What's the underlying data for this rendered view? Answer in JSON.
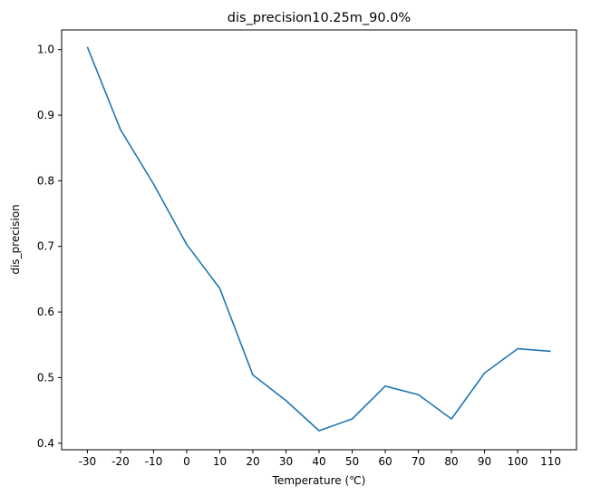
{
  "chart_data": {
    "type": "line",
    "title": "dis_precision10.25m_90.0%",
    "xlabel": "Temperature (℃)",
    "ylabel": "dis_precision",
    "categories": [
      "-30",
      "-20",
      "-10",
      "0",
      "10",
      "20",
      "30",
      "40",
      "50",
      "60",
      "70",
      "80",
      "90",
      "100",
      "110"
    ],
    "yticks": [
      "0.4",
      "0.5",
      "0.6",
      "0.7",
      "0.8",
      "0.9",
      "1.0"
    ],
    "ylim": [
      0.39,
      1.03
    ],
    "grid": false,
    "series": [
      {
        "color": "#1f77b4",
        "values": [
          1.004,
          0.878,
          0.795,
          0.703,
          0.636,
          0.504,
          0.465,
          0.419,
          0.437,
          0.487,
          0.474,
          0.437,
          0.507,
          0.544,
          0.54
        ]
      }
    ]
  }
}
